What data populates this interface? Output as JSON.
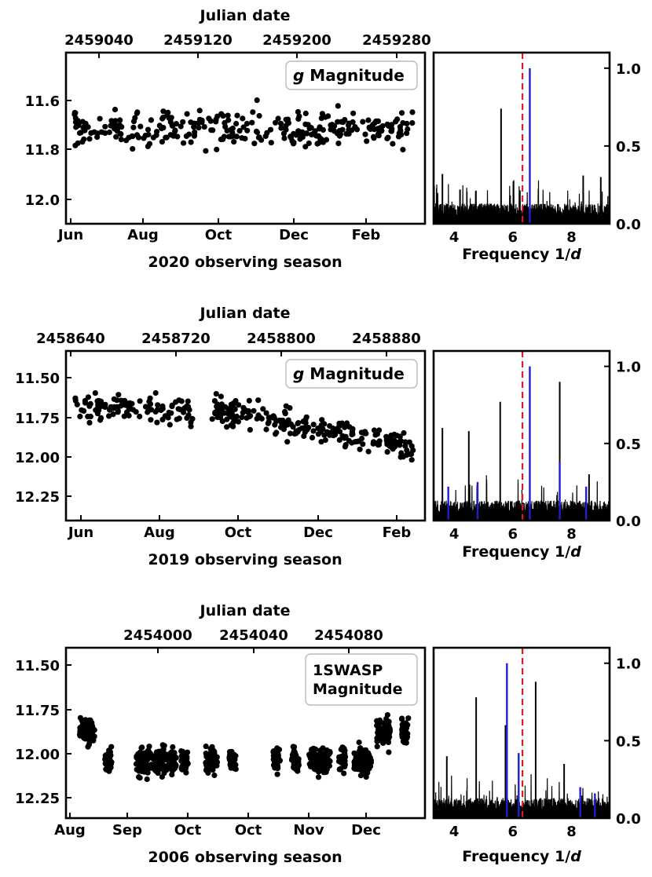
{
  "chart_data": [
    {
      "type": "scatter",
      "role": "light-curve",
      "title": "",
      "xlabel": "2020 observing season",
      "x_tick_labels": [
        "Jun",
        "Aug",
        "Oct",
        "Dec",
        "Feb"
      ],
      "top_xlabel": "Julian date",
      "top_x_ticks": [
        2459040,
        2459120,
        2459200,
        2459280
      ],
      "xlim": [
        2459005,
        2459300
      ],
      "ylabel": "",
      "ylim": [
        12.1,
        11.45
      ],
      "y_inverted": true,
      "y_ticks": [
        11.6,
        11.8,
        12.0
      ],
      "y_tick_labels": [
        "11.6",
        "11.8",
        "12.0"
      ],
      "legend": {
        "italic": "g",
        "text": "Magnitude",
        "placement": "top-right"
      },
      "series": [
        {
          "color": "#000000",
          "x_range": [
            2459010,
            2459290
          ],
          "y_mean": 11.74,
          "y_spread": 0.11,
          "sampling": "nightly, approx. 300 points"
        }
      ]
    },
    {
      "type": "line",
      "role": "periodogram",
      "xlabel_prefix": "Frequency 1/",
      "xlabel_var": "d",
      "xlim": [
        3.3,
        9.3
      ],
      "x_ticks": [
        4,
        6,
        8
      ],
      "ylim": [
        0,
        1.1
      ],
      "y_ticks": [
        0.0,
        0.5,
        1.0
      ],
      "y_tick_labels": [
        "0.0",
        "0.5",
        "1.0"
      ],
      "y_axis_side": "right",
      "reference_line": {
        "x": 6.33,
        "color": "#e31a1c",
        "style": "dashed"
      },
      "peaks_black": [
        [
          3.6,
          0.32
        ],
        [
          4.2,
          0.22
        ],
        [
          5.6,
          0.74
        ],
        [
          8.4,
          0.31
        ],
        [
          9.0,
          0.3
        ]
      ],
      "peaks_blue": [
        [
          6.58,
          1.0
        ]
      ]
    },
    {
      "type": "scatter",
      "role": "light-curve",
      "title": "",
      "xlabel": "2019 observing season",
      "x_tick_labels": [
        "Jun",
        "Aug",
        "Oct",
        "Dec",
        "Feb"
      ],
      "top_xlabel": "Julian date",
      "top_x_ticks": [
        2458640,
        2458720,
        2458800,
        2458880
      ],
      "xlim": [
        2458622,
        2458893
      ],
      "ylabel": "",
      "ylim": [
        12.4,
        11.37
      ],
      "y_inverted": true,
      "y_ticks": [
        11.5,
        11.75,
        12.0,
        12.25
      ],
      "y_tick_labels": [
        "11.50",
        "11.75",
        "12.00",
        "12.25"
      ],
      "legend": {
        "italic": "g",
        "text": "Magnitude",
        "placement": "top-right"
      },
      "series": [
        {
          "color": "#000000",
          "x_range": [
            2458628,
            2458885
          ],
          "y_mean_start": 11.72,
          "y_mean_end": 11.98,
          "y_spread": 0.13,
          "sampling": "nightly with a gap in Sep, approx. 350 points"
        }
      ]
    },
    {
      "type": "line",
      "role": "periodogram",
      "xlabel_prefix": "Frequency 1/",
      "xlabel_var": "d",
      "xlim": [
        3.3,
        9.3
      ],
      "x_ticks": [
        4,
        6,
        8
      ],
      "ylim": [
        0,
        1.1
      ],
      "y_ticks": [
        0.0,
        0.5,
        1.0
      ],
      "y_tick_labels": [
        "0.0",
        "0.5",
        "1.0"
      ],
      "y_axis_side": "right",
      "reference_line": {
        "x": 6.33,
        "color": "#e31a1c",
        "style": "dashed"
      },
      "peaks_black": [
        [
          3.6,
          0.6
        ],
        [
          4.5,
          0.58
        ],
        [
          5.57,
          0.77
        ],
        [
          7.6,
          0.9
        ],
        [
          8.6,
          0.3
        ]
      ],
      "peaks_blue": [
        [
          6.58,
          1.0
        ],
        [
          3.8,
          0.22
        ],
        [
          4.8,
          0.25
        ],
        [
          7.6,
          0.38
        ],
        [
          8.5,
          0.22
        ]
      ]
    },
    {
      "type": "scatter",
      "role": "light-curve",
      "title": "",
      "xlabel": "2006 observing season",
      "x_tick_labels": [
        "Aug",
        "Sep",
        "Oct",
        "Oct",
        "Nov",
        "Dec"
      ],
      "top_xlabel": "Julian date",
      "top_x_ticks": [
        2454000,
        2454040,
        2454080
      ],
      "xlim": [
        2453955,
        2454128
      ],
      "ylabel": "",
      "ylim": [
        12.38,
        11.4
      ],
      "y_inverted": true,
      "y_ticks": [
        11.5,
        11.75,
        12.0,
        12.25
      ],
      "y_tick_labels": [
        "11.50",
        "11.75",
        "12.00",
        "12.25"
      ],
      "legend": {
        "lines": [
          "1SWASP",
          "Magnitude"
        ],
        "placement": "top-right"
      },
      "series": [
        {
          "color": "#000000",
          "x_range": [
            2453967,
            2454123
          ],
          "y_mean": 12.06,
          "y_spread": 0.1,
          "sampling": "dense nightly clusters of approx. 40 points, brighter near the start and end"
        }
      ]
    },
    {
      "type": "line",
      "role": "periodogram",
      "xlabel_prefix": "Frequency 1/",
      "xlabel_var": "d",
      "xlim": [
        3.3,
        9.3
      ],
      "x_ticks": [
        4,
        6,
        8
      ],
      "ylim": [
        0,
        1.1
      ],
      "y_ticks": [
        0.0,
        0.5,
        1.0
      ],
      "y_tick_labels": [
        "0.0",
        "0.5",
        "1.0"
      ],
      "y_axis_side": "right",
      "reference_line": {
        "x": 6.33,
        "color": "#e31a1c",
        "style": "dashed"
      },
      "peaks_black": [
        [
          3.75,
          0.4
        ],
        [
          4.75,
          0.78
        ],
        [
          5.75,
          0.6
        ],
        [
          6.78,
          0.88
        ],
        [
          7.75,
          0.35
        ]
      ],
      "peaks_blue": [
        [
          5.8,
          1.0
        ],
        [
          6.2,
          0.42
        ],
        [
          8.3,
          0.2
        ],
        [
          8.8,
          0.16
        ]
      ]
    }
  ]
}
